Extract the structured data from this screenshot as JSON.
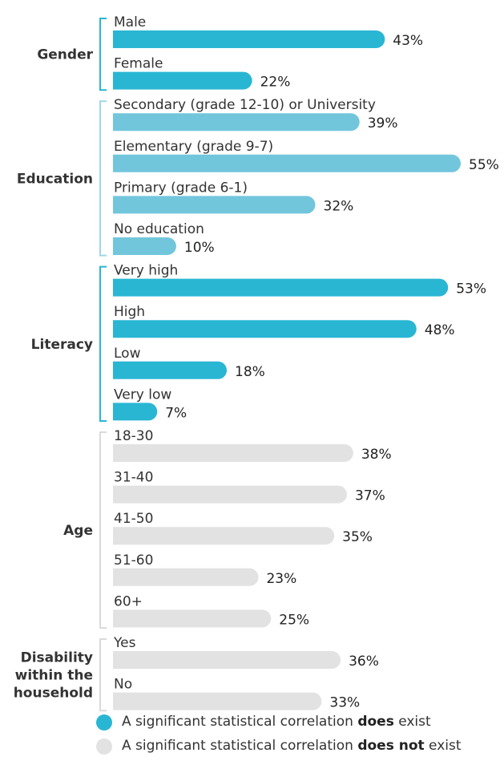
{
  "chart_data": {
    "type": "bar",
    "orientation": "horizontal",
    "xlim": [
      0,
      55
    ],
    "value_suffix": "%",
    "groups": [
      {
        "name": "Gender",
        "significant": true,
        "bars": [
          {
            "label": "Male",
            "value": 43
          },
          {
            "label": "Female",
            "value": 22
          }
        ]
      },
      {
        "name": "Education",
        "significant": true,
        "bars": [
          {
            "label": "Secondary (grade 12-10) or University",
            "value": 39
          },
          {
            "label": "Elementary (grade 9-7)",
            "value": 55
          },
          {
            "label": "Primary (grade 6-1)",
            "value": 32
          },
          {
            "label": "No education",
            "value": 10
          }
        ]
      },
      {
        "name": "Literacy",
        "significant": true,
        "bars": [
          {
            "label": "Very high",
            "value": 53
          },
          {
            "label": "High",
            "value": 48
          },
          {
            "label": "Low",
            "value": 18
          },
          {
            "label": "Very low",
            "value": 7
          }
        ]
      },
      {
        "name": "Age",
        "significant": false,
        "bars": [
          {
            "label": "18-30",
            "value": 38
          },
          {
            "label": "31-40",
            "value": 37
          },
          {
            "label": "41-50",
            "value": 35
          },
          {
            "label": "51-60",
            "value": 23
          },
          {
            "label": "60+",
            "value": 25
          }
        ]
      },
      {
        "name": "Disability within the household",
        "name_lines": [
          "Disability",
          "within the",
          "household"
        ],
        "significant": false,
        "bars": [
          {
            "label": "Yes",
            "value": 36
          },
          {
            "label": "No",
            "value": 33
          }
        ]
      }
    ],
    "colors": {
      "Gender": "#29b6d3",
      "Education": "#72c6dc",
      "Literacy": "#29b6d3",
      "Age": "#e2e2e2",
      "Disability within the household": "#e2e2e2",
      "bracket_significant": "#29b6d3",
      "bracket_education": "#9fd7e6",
      "bracket_not_significant": "#dadada"
    }
  },
  "legend": {
    "items": [
      {
        "prefix": "A significant statistical correlation ",
        "bold": "does",
        "suffix": " exist",
        "color": "#29b6d3"
      },
      {
        "prefix": "A significant statistical correlation ",
        "bold": "does not",
        "suffix": " exist",
        "color": "#e2e2e2"
      }
    ]
  }
}
